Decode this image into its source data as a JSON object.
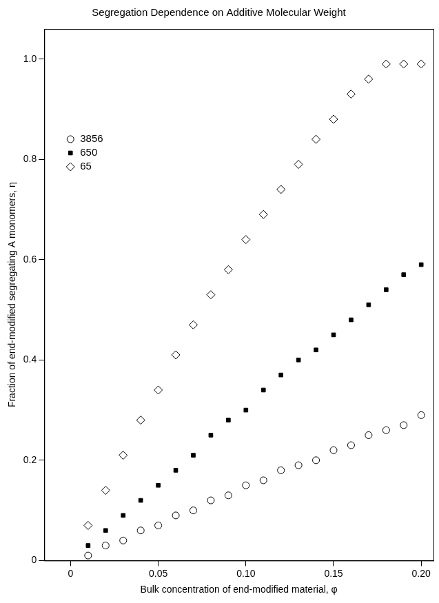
{
  "chart_data": {
    "type": "scatter",
    "title": "Segregation Dependence on Additive Molecular Weight",
    "x_label": "Bulk concentration of end-modified material, φ",
    "y_label": "Fraction of end-modified segregating A monomers, η",
    "x": [
      0.01,
      0.02,
      0.03,
      0.04,
      0.05,
      0.06,
      0.07,
      0.08,
      0.09,
      0.1,
      0.11,
      0.12,
      0.13,
      0.14,
      0.15,
      0.16,
      0.17,
      0.18,
      0.19,
      0.2
    ],
    "series": [
      {
        "name": "3856",
        "color": "#000000",
        "marker": "circle_open",
        "values": [
          0.01,
          0.03,
          0.04,
          0.06,
          0.07,
          0.09,
          0.1,
          0.12,
          0.13,
          0.15,
          0.16,
          0.18,
          0.19,
          0.2,
          0.22,
          0.23,
          0.25,
          0.26,
          0.27,
          0.29
        ]
      },
      {
        "name": "650",
        "color": "#000000",
        "marker": "square",
        "values": [
          0.03,
          0.06,
          0.09,
          0.12,
          0.15,
          0.18,
          0.21,
          0.25,
          0.28,
          0.3,
          0.34,
          0.37,
          0.4,
          0.42,
          0.45,
          0.48,
          0.51,
          0.54,
          0.57,
          0.59
        ]
      },
      {
        "name": "65",
        "color": "#000000",
        "marker": "diamond_open",
        "values": [
          0.07,
          0.14,
          0.21,
          0.28,
          0.34,
          0.41,
          0.47,
          0.53,
          0.58,
          0.64,
          0.69,
          0.74,
          0.79,
          0.84,
          0.88,
          0.93,
          0.96,
          0.99,
          0.99,
          0.99
        ]
      }
    ],
    "xlim": [
      -0.015,
      0.207
    ],
    "xticks": [
      0,
      0.05,
      {
        "value": 0.1,
        "label": "0.10"
      },
      0.15,
      {
        "value": 0.2,
        "label": "0.20"
      }
    ],
    "ylim": [
      0,
      1.06
    ],
    "yticks": [
      0,
      0.2,
      0.4,
      0.6,
      0.8,
      {
        "value": 1,
        "label": "1.0"
      }
    ],
    "grid": false,
    "legend": "upper left"
  }
}
